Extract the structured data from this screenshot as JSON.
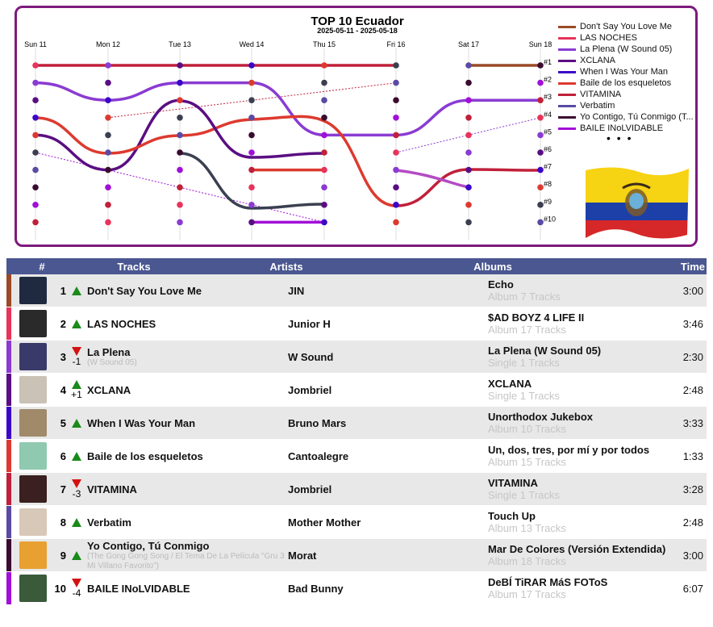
{
  "chart_data": {
    "type": "line",
    "title": "TOP 10 Ecuador",
    "subtitle": "2025-05-11 - 2025-05-18",
    "categories": [
      "Sun 11",
      "Mon 12",
      "Tue 13",
      "Wed 14",
      "Thu 15",
      "Fri 16",
      "Sat 17",
      "Sun 18"
    ],
    "rank_labels": [
      "#1",
      "#2",
      "#3",
      "#4",
      "#5",
      "#6",
      "#7",
      "#8",
      "#9",
      "#10"
    ],
    "ylim": [
      1,
      10
    ],
    "y_inverted": true,
    "series": [
      {
        "name": "Don't Say You Love Me",
        "color": "#9a4a26",
        "values": [
          null,
          null,
          null,
          null,
          null,
          null,
          1,
          1
        ]
      },
      {
        "name": "LAS NOCHES",
        "color": "#e8335a",
        "values": [
          null,
          null,
          null,
          null,
          null,
          null,
          null,
          2
        ]
      },
      {
        "name": "La Plena (W Sound 05)",
        "color": "#8a3bd2",
        "values": [
          2,
          3,
          2,
          2,
          5,
          5,
          3,
          3
        ]
      },
      {
        "name": "XCLANA",
        "color": "#5a0e82",
        "values": [
          5,
          7,
          3,
          null,
          null,
          null,
          null,
          null
        ]
      },
      {
        "name": "When I Was Your Man",
        "color": "#3b06c8",
        "values": [
          null,
          null,
          null,
          null,
          null,
          null,
          null,
          5
        ]
      },
      {
        "name": "Baile de los esqueletos",
        "color": "#dd3a2f",
        "values": [
          null,
          null,
          null,
          7,
          7,
          null,
          null,
          null
        ]
      },
      {
        "name": "VITAMINA",
        "color": "#c0203a",
        "values": [
          1,
          1,
          1,
          1,
          1,
          1,
          null,
          null
        ]
      },
      {
        "name": "Verbatim",
        "color": "#5b4aa3",
        "values": [
          null,
          null,
          null,
          null,
          null,
          null,
          null,
          null
        ]
      },
      {
        "name": "Yo Contigo, Tú Conmigo (T...",
        "color": "#3a0b30",
        "values": [
          null,
          null,
          null,
          null,
          null,
          null,
          null,
          null
        ]
      },
      {
        "name": "BAILE INoLVIDABLE",
        "color": "#a10fd8",
        "values": [
          null,
          null,
          null,
          10,
          10,
          null,
          null,
          null
        ]
      }
    ],
    "legend_position": "right",
    "grid": true
  },
  "legend_more": "• • •",
  "table": {
    "headers": {
      "num": "#",
      "tracks": "Tracks",
      "artists": "Artists",
      "albums": "Albums",
      "time": "Time"
    },
    "rows": [
      {
        "rank": "1",
        "dir": "up",
        "delta": "",
        "track": "Don't Say You Love Me",
        "track_sub": "",
        "artist": "JIN",
        "album": "Echo",
        "album_sub": "Album 7 Tracks",
        "time": "3:00",
        "color": "#9a4a26",
        "thumb": "#1f2a40"
      },
      {
        "rank": "2",
        "dir": "up",
        "delta": "",
        "track": "LAS NOCHES",
        "track_sub": "",
        "artist": "Junior H",
        "album": "$AD BOYZ 4 LIFE II",
        "album_sub": "Album 17 Tracks",
        "time": "3:46",
        "color": "#e8335a",
        "thumb": "#2a2a2a"
      },
      {
        "rank": "3",
        "dir": "down",
        "delta": "-1",
        "track": "La Plena",
        "track_sub": "(W Sound 05)",
        "artist": "W Sound",
        "album": "La Plena (W Sound 05)",
        "album_sub": "Single 1 Tracks",
        "time": "2:30",
        "color": "#8a3bd2",
        "thumb": "#3a3a6a"
      },
      {
        "rank": "4",
        "dir": "up",
        "delta": "+1",
        "track": "XCLANA",
        "track_sub": "",
        "artist": "Jombriel",
        "album": "XCLANA",
        "album_sub": "Single 1 Tracks",
        "time": "2:48",
        "color": "#5a0e82",
        "thumb": "#c9c2b5"
      },
      {
        "rank": "5",
        "dir": "up",
        "delta": "",
        "track": "When I Was Your Man",
        "track_sub": "",
        "artist": "Bruno Mars",
        "album": "Unorthodox Jukebox",
        "album_sub": "Album 10 Tracks",
        "time": "3:33",
        "color": "#3b06c8",
        "thumb": "#a08a6a"
      },
      {
        "rank": "6",
        "dir": "up",
        "delta": "",
        "track": "Baile de los esqueletos",
        "track_sub": "",
        "artist": "Cantoalegre",
        "album": "Un, dos, tres, por mí y por todos",
        "album_sub": "Album 15 Tracks",
        "time": "1:33",
        "color": "#dd3a2f",
        "thumb": "#8fc9b0"
      },
      {
        "rank": "7",
        "dir": "down",
        "delta": "-3",
        "track": "VITAMINA",
        "track_sub": "",
        "artist": "Jombriel",
        "album": "VITAMINA",
        "album_sub": "Single 1 Tracks",
        "time": "3:28",
        "color": "#c0203a",
        "thumb": "#3a2020"
      },
      {
        "rank": "8",
        "dir": "up",
        "delta": "",
        "track": "Verbatim",
        "track_sub": "",
        "artist": "Mother Mother",
        "album": "Touch Up",
        "album_sub": "Album 13 Tracks",
        "time": "2:48",
        "color": "#5b4aa3",
        "thumb": "#d8c8b8"
      },
      {
        "rank": "9",
        "dir": "up",
        "delta": "",
        "track": "Yo Contigo, Tú Conmigo",
        "track_sub": "(The Gong Gong Song / El Tema De La Película \"Gru 3 Mi Villano Favorito\")",
        "artist": "Morat",
        "album": "Mar De Colores (Versión Extendida)",
        "album_sub": "Album 18 Tracks",
        "time": "3:00",
        "color": "#3a0b30",
        "thumb": "#e8a030"
      },
      {
        "rank": "10",
        "dir": "down",
        "delta": "-4",
        "track": "BAILE INoLVIDABLE",
        "track_sub": "",
        "artist": "Bad Bunny",
        "album": "DeBÍ TiRAR MáS FOToS",
        "album_sub": "Album 17 Tracks",
        "time": "6:07",
        "color": "#a10fd8",
        "thumb": "#3a5a3a"
      }
    ]
  }
}
